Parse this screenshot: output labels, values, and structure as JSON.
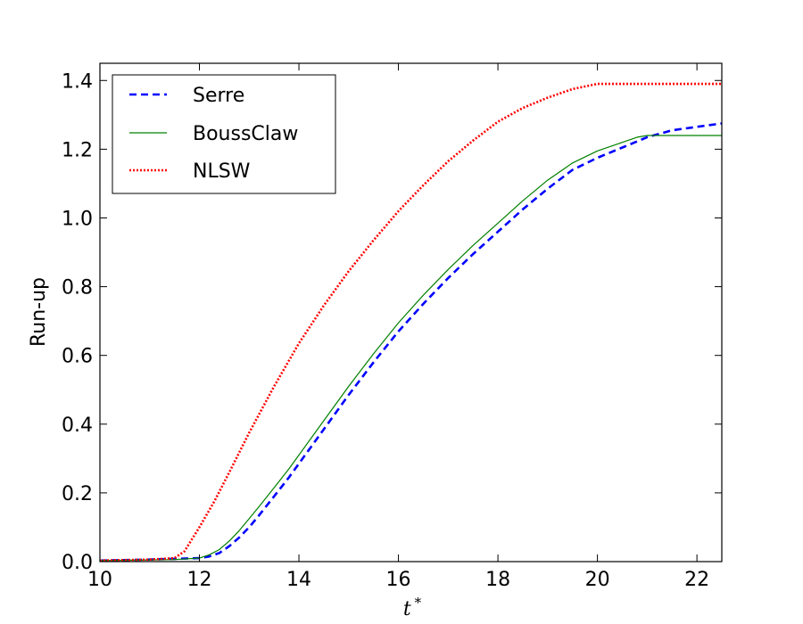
{
  "chart_data": {
    "type": "line",
    "xlabel": "t",
    "xlabel_superscript": "*",
    "ylabel": "Run-up",
    "xlim": [
      10,
      22.5
    ],
    "ylim": [
      0,
      1.45
    ],
    "xticks": [
      "10",
      "12",
      "14",
      "16",
      "18",
      "20",
      "22"
    ],
    "xtick_values": [
      10,
      12,
      14,
      16,
      18,
      20,
      22
    ],
    "yticks": [
      "0.0",
      "0.2",
      "0.4",
      "0.6",
      "0.8",
      "1.0",
      "1.2",
      "1.4"
    ],
    "ytick_values": [
      0,
      0.2,
      0.4,
      0.6,
      0.8,
      1.0,
      1.2,
      1.4
    ],
    "grid": false,
    "legend_position": "top-left",
    "series": [
      {
        "name": "Serre",
        "color": "#0000ff",
        "style": "dashed",
        "x": [
          10,
          11,
          11.5,
          12,
          12.2,
          12.4,
          12.6,
          12.8,
          13,
          13.2,
          13.5,
          13.8,
          14,
          14.5,
          15,
          15.5,
          16,
          16.5,
          17,
          17.5,
          18,
          18.5,
          19,
          19.5,
          20,
          20.5,
          21,
          21.5,
          22,
          22.5
        ],
        "y": [
          0.003,
          0.006,
          0.008,
          0.01,
          0.015,
          0.025,
          0.045,
          0.07,
          0.1,
          0.135,
          0.19,
          0.245,
          0.285,
          0.385,
          0.485,
          0.58,
          0.67,
          0.75,
          0.825,
          0.895,
          0.96,
          1.025,
          1.085,
          1.14,
          1.175,
          1.205,
          1.235,
          1.255,
          1.265,
          1.275
        ]
      },
      {
        "name": "BoussClaw",
        "color": "#008000",
        "style": "solid",
        "x": [
          10,
          11,
          11.5,
          12,
          12.2,
          12.4,
          12.6,
          12.8,
          13,
          13.2,
          13.5,
          13.8,
          14,
          14.5,
          15,
          15.5,
          16,
          16.5,
          17,
          17.5,
          18,
          18.5,
          19,
          19.5,
          20,
          20.5,
          20.8,
          21,
          22,
          22.5
        ],
        "y": [
          0.003,
          0.005,
          0.006,
          0.01,
          0.02,
          0.035,
          0.06,
          0.09,
          0.125,
          0.16,
          0.215,
          0.27,
          0.31,
          0.41,
          0.51,
          0.605,
          0.695,
          0.775,
          0.85,
          0.92,
          0.985,
          1.05,
          1.11,
          1.16,
          1.195,
          1.22,
          1.235,
          1.24,
          1.24,
          1.24
        ]
      },
      {
        "name": "NLSW",
        "color": "#ff0000",
        "style": "dotted",
        "x": [
          10,
          11,
          11.5,
          11.7,
          12,
          12.3,
          12.6,
          13,
          13.5,
          14,
          14.5,
          15,
          15.5,
          16,
          16.5,
          17,
          17.5,
          18,
          18.5,
          19,
          19.5,
          20,
          21,
          22,
          22.5
        ],
        "y": [
          0.003,
          0.006,
          0.01,
          0.03,
          0.1,
          0.175,
          0.26,
          0.375,
          0.51,
          0.635,
          0.745,
          0.845,
          0.935,
          1.02,
          1.095,
          1.165,
          1.225,
          1.28,
          1.32,
          1.35,
          1.375,
          1.39,
          1.39,
          1.39,
          1.39
        ]
      }
    ]
  }
}
